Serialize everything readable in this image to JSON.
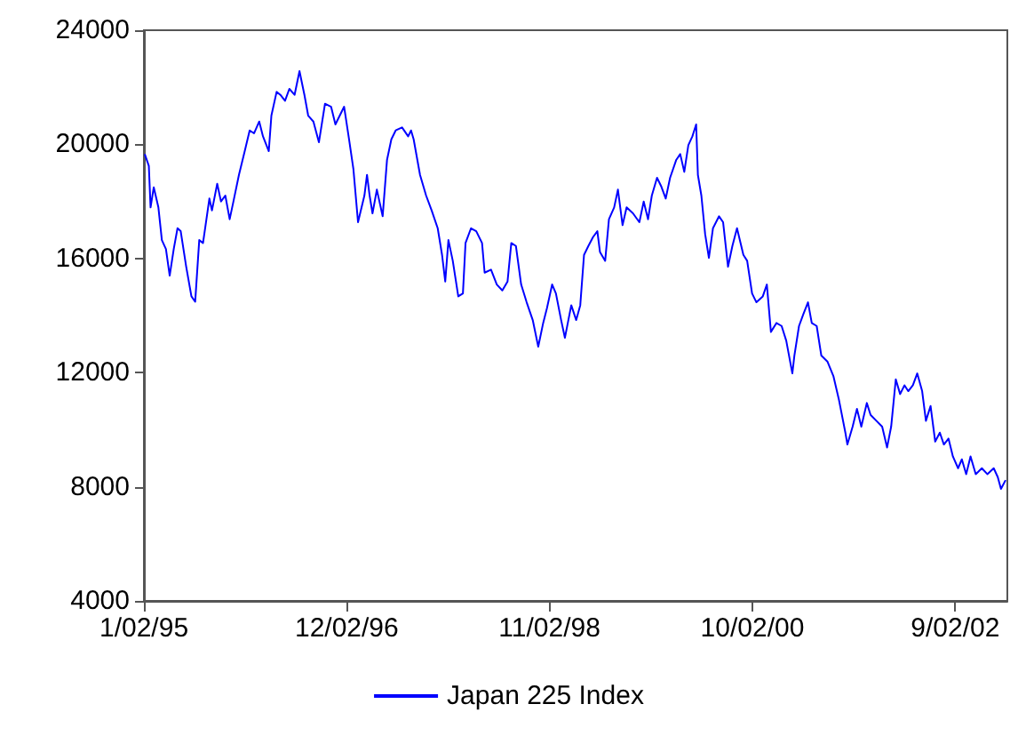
{
  "chart_data": {
    "type": "line",
    "legend": "bottom",
    "grid": false,
    "marker": "none",
    "line_style": "solid",
    "xlim": [
      "1995-01-02",
      "2003-03-01"
    ],
    "xticks": [
      {
        "value": "1995-01-02",
        "label": "1/02/95"
      },
      {
        "value": "1996-12-02",
        "label": "12/02/96"
      },
      {
        "value": "1998-11-02",
        "label": "11/02/98"
      },
      {
        "value": "2000-10-02",
        "label": "10/02/00"
      },
      {
        "value": "2002-09-02",
        "label": "9/02/02"
      }
    ],
    "ylim": [
      4000,
      24000
    ],
    "yticks": [
      4000,
      8000,
      12000,
      16000,
      20000,
      24000
    ],
    "x": [
      "1995-01-05",
      "1995-01-19",
      "1995-01-25",
      "1995-02-05",
      "1995-02-21",
      "1995-03-05",
      "1995-03-19",
      "1995-04-01",
      "1995-04-15",
      "1995-04-28",
      "1995-05-09",
      "1995-05-28",
      "1995-06-15",
      "1995-06-28",
      "1995-07-12",
      "1995-07-25",
      "1995-08-16",
      "1995-08-25",
      "1995-09-12",
      "1995-09-25",
      "1995-10-10",
      "1995-10-25",
      "1995-11-07",
      "1995-11-26",
      "1995-12-16",
      "1996-01-02",
      "1996-01-17",
      "1996-02-04",
      "1996-02-17",
      "1996-03-08",
      "1996-03-17",
      "1996-04-04",
      "1996-04-17",
      "1996-05-03",
      "1996-05-18",
      "1996-06-05",
      "1996-06-22",
      "1996-07-09",
      "1996-07-22",
      "1996-08-09",
      "1996-08-28",
      "1996-09-18",
      "1996-10-09",
      "1996-10-24",
      "1996-11-23",
      "1996-12-10",
      "1996-12-25",
      "1997-01-10",
      "1997-02-01",
      "1997-02-10",
      "1997-02-19",
      "1997-03-01",
      "1997-03-16",
      "1997-04-05",
      "1997-04-20",
      "1997-05-05",
      "1997-05-20",
      "1997-06-11",
      "1997-07-02",
      "1997-07-12",
      "1997-07-21",
      "1997-08-12",
      "1997-09-02",
      "1997-09-21",
      "1997-10-12",
      "1997-10-27",
      "1997-11-07",
      "1997-11-18",
      "1997-12-03",
      "1997-12-22",
      "1998-01-07",
      "1998-01-16",
      "1998-02-04",
      "1998-02-22",
      "1998-03-14",
      "1998-03-23",
      "1998-04-14",
      "1998-05-04",
      "1998-05-23",
      "1998-06-10",
      "1998-06-23",
      "1998-07-09",
      "1998-07-27",
      "1998-08-15",
      "1998-09-05",
      "1998-09-24",
      "1998-10-11",
      "1998-10-24",
      "1998-11-11",
      "1998-11-24",
      "1998-12-12",
      "1998-12-25",
      "1999-01-16",
      "1999-02-02",
      "1999-02-16",
      "1999-03-01",
      "1999-03-16",
      "1999-04-01",
      "1999-04-16",
      "1999-04-25",
      "1999-05-13",
      "1999-05-26",
      "1999-06-13",
      "1999-06-26",
      "1999-07-12",
      "1999-07-26",
      "1999-08-17",
      "1999-09-08",
      "1999-09-23",
      "1999-10-08",
      "1999-10-21",
      "1999-11-08",
      "1999-11-23",
      "1999-12-08",
      "1999-12-23",
      "2000-01-13",
      "2000-01-27",
      "2000-02-10",
      "2000-02-24",
      "2000-03-09",
      "2000-03-22",
      "2000-03-28",
      "2000-04-09",
      "2000-04-22",
      "2000-05-05",
      "2000-05-19",
      "2000-06-09",
      "2000-06-23",
      "2000-07-10",
      "2000-07-25",
      "2000-08-10",
      "2000-09-01",
      "2000-09-14",
      "2000-10-01",
      "2000-10-16",
      "2000-11-07",
      "2000-11-21",
      "2000-12-05",
      "2000-12-24",
      "2001-01-11",
      "2001-01-27",
      "2001-02-17",
      "2001-02-24",
      "2001-03-12",
      "2001-03-27",
      "2001-04-12",
      "2001-04-25",
      "2001-05-12",
      "2001-05-28",
      "2001-06-18",
      "2001-07-09",
      "2001-07-28",
      "2001-08-19",
      "2001-08-26",
      "2001-09-13",
      "2001-09-28",
      "2001-10-13",
      "2001-11-01",
      "2001-11-14",
      "2001-12-04",
      "2001-12-24",
      "2002-01-10",
      "2002-01-24",
      "2002-02-09",
      "2002-02-24",
      "2002-03-11",
      "2002-03-24",
      "2002-04-09",
      "2002-04-24",
      "2002-05-11",
      "2002-05-24",
      "2002-06-09",
      "2002-06-25",
      "2002-07-11",
      "2002-07-25",
      "2002-08-10",
      "2002-08-25",
      "2002-09-12",
      "2002-09-25",
      "2002-10-10",
      "2002-10-25",
      "2002-11-12",
      "2002-12-03",
      "2002-12-22",
      "2003-01-13",
      "2003-01-27",
      "2003-02-07",
      "2003-02-23"
    ],
    "series": [
      {
        "name": "Japan 225 Index",
        "color": "#0000ff",
        "values": [
          19658,
          19246,
          17790,
          18496,
          17790,
          16645,
          16334,
          15400,
          16334,
          17060,
          16957,
          15711,
          14672,
          14485,
          16645,
          16540,
          18101,
          17686,
          18620,
          17998,
          18205,
          17375,
          17998,
          18931,
          19762,
          20489,
          20385,
          20800,
          20281,
          19762,
          21008,
          21839,
          21735,
          21527,
          21943,
          21735,
          22565,
          21735,
          21008,
          20800,
          20073,
          21423,
          21319,
          20696,
          21319,
          20177,
          19139,
          17271,
          18205,
          18931,
          18205,
          17583,
          18413,
          17479,
          19450,
          20177,
          20489,
          20592,
          20281,
          20489,
          20177,
          18931,
          18205,
          17686,
          17060,
          16126,
          15192,
          16645,
          15919,
          14672,
          14776,
          16541,
          17060,
          16957,
          16541,
          15503,
          15607,
          15088,
          14880,
          15192,
          16541,
          16437,
          15088,
          14465,
          13842,
          12908,
          13738,
          14257,
          15088,
          14776,
          13842,
          13219,
          14361,
          13842,
          14361,
          16126,
          16437,
          16749,
          16957,
          16230,
          15919,
          17375,
          17790,
          18413,
          17167,
          17790,
          17583,
          17271,
          17998,
          17375,
          18205,
          18828,
          18516,
          18101,
          18828,
          19450,
          19658,
          19035,
          19969,
          20281,
          20696,
          18931,
          18205,
          16853,
          16022,
          17060,
          17479,
          17271,
          15711,
          16437,
          17060,
          16126,
          15919,
          14776,
          14465,
          14672,
          15088,
          13427,
          13738,
          13634,
          13115,
          11973,
          12596,
          13634,
          14050,
          14465,
          13738,
          13634,
          12596,
          12389,
          11869,
          11038,
          9896,
          9480,
          10104,
          10727,
          10104,
          10935,
          10519,
          10311,
          10104,
          9376,
          10104,
          11765,
          11246,
          11557,
          11350,
          11557,
          11973,
          11350,
          10311,
          10831,
          9584,
          9896,
          9480,
          9688,
          9065,
          8650,
          8961,
          8442,
          9065,
          8442,
          8650,
          8442,
          8650,
          8338,
          7923,
          8234
        ]
      }
    ]
  }
}
